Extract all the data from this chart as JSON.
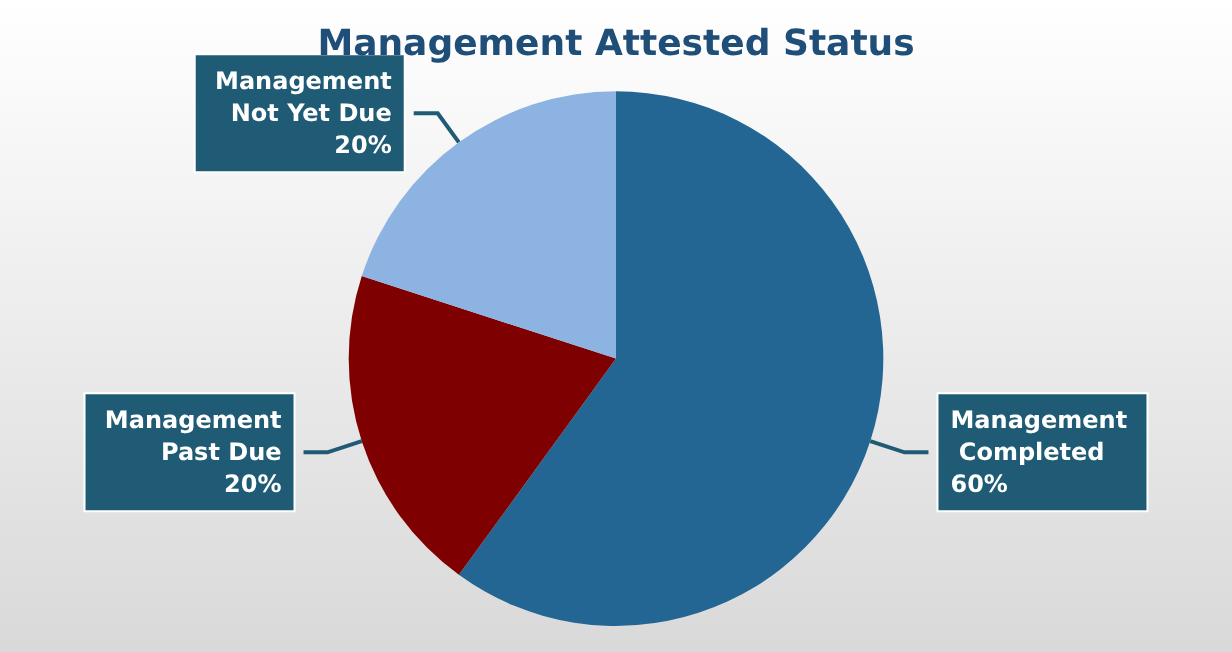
{
  "chart_data": {
    "type": "pie",
    "title": "Management Attested Status",
    "categories": [
      "Management Completed",
      "Management Past Due",
      "Management Not Yet Due"
    ],
    "values": [
      60,
      20,
      20
    ],
    "colors": [
      "#236694",
      "#7f0000",
      "#8db3e2"
    ],
    "value_labels": [
      "60%",
      "20%",
      "20%"
    ],
    "legend": false
  }
}
